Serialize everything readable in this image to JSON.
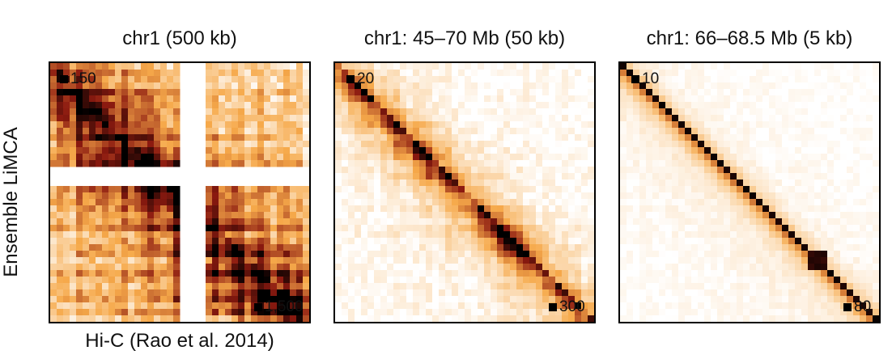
{
  "figure": {
    "row_label": "Ensemble LiMCA",
    "col_label": "Hi-C (Rao et al. 2014)",
    "panels": [
      {
        "title": "chr1 (500 kb)",
        "upper_max": "150",
        "lower_max": "1,500",
        "variant": "whole"
      },
      {
        "title": "chr1: 45–70 Mb (50 kb)",
        "upper_max": "20",
        "lower_max": "300",
        "variant": "mid"
      },
      {
        "title": "chr1: 66–68.5 Mb (5 kb)",
        "upper_max": "10",
        "lower_max": "80",
        "variant": "zoom"
      }
    ]
  },
  "colors": {
    "low": "#ffffff",
    "mid": "#f6a94a",
    "high": "#8c1a10",
    "max": "#000000"
  }
}
